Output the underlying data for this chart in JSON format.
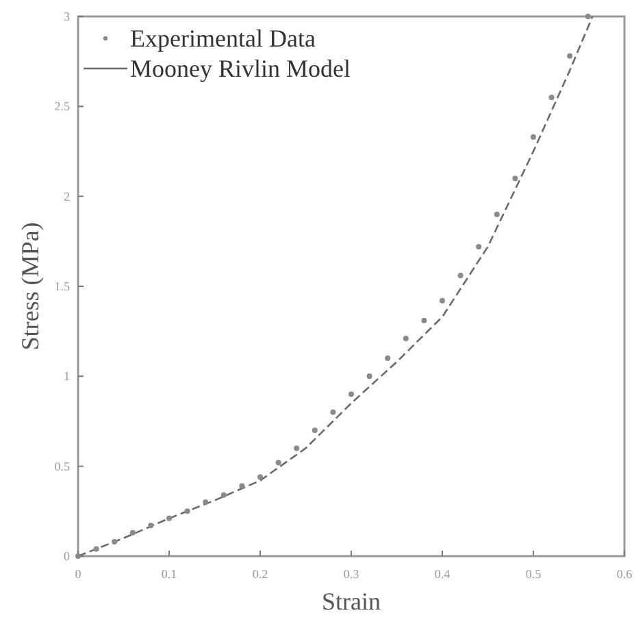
{
  "chart_data": {
    "type": "line",
    "xlabel": "Strain",
    "ylabel": "Stress (MPa)",
    "xlim": [
      0,
      0.6
    ],
    "ylim": [
      0,
      3
    ],
    "xticks": [
      0,
      0.1,
      0.2,
      0.3,
      0.4,
      0.5,
      0.6
    ],
    "yticks": [
      0,
      0.5,
      1,
      1.5,
      2,
      2.5,
      3
    ],
    "legend": "top left",
    "grid": false,
    "series": [
      {
        "name": "Experimental Data",
        "type": "scatter",
        "marker": "circle",
        "color": "#8a8a8a",
        "x": [
          0,
          0.02,
          0.04,
          0.06,
          0.08,
          0.1,
          0.12,
          0.14,
          0.16,
          0.18,
          0.2,
          0.22,
          0.24,
          0.26,
          0.28,
          0.3,
          0.32,
          0.34,
          0.36,
          0.38,
          0.4,
          0.42,
          0.44,
          0.46,
          0.48,
          0.5,
          0.52,
          0.54,
          0.56
        ],
        "values": [
          0,
          0.04,
          0.08,
          0.13,
          0.17,
          0.21,
          0.25,
          0.3,
          0.34,
          0.39,
          0.44,
          0.52,
          0.6,
          0.7,
          0.8,
          0.9,
          1.0,
          1.1,
          1.21,
          1.31,
          1.42,
          1.56,
          1.72,
          1.9,
          2.1,
          2.33,
          2.55,
          2.78,
          3.0
        ]
      },
      {
        "name": "Mooney Rivlin Model",
        "type": "line",
        "line_style": "dashed",
        "color": "#6a6a6a",
        "x": [
          0,
          0.05,
          0.1,
          0.15,
          0.2,
          0.25,
          0.3,
          0.35,
          0.4,
          0.45,
          0.5,
          0.54,
          0.565
        ],
        "values": [
          0,
          0.1,
          0.21,
          0.31,
          0.42,
          0.6,
          0.85,
          1.08,
          1.33,
          1.72,
          2.25,
          2.7,
          3.0
        ]
      }
    ]
  }
}
